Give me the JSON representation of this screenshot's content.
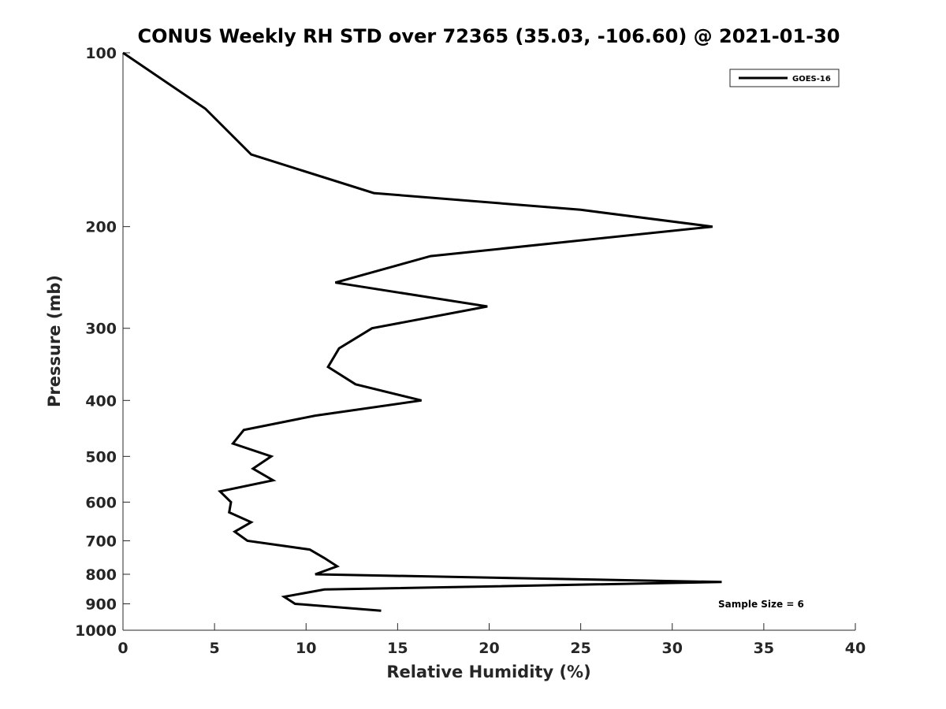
{
  "chart_data": {
    "type": "line",
    "title": "CONUS Weekly RH STD over 72365 (35.03, -106.60) @ 2021-01-30",
    "xlabel": "Relative Humidity (%)",
    "ylabel": "Pressure (mb)",
    "xlim": [
      0,
      40
    ],
    "ylim": [
      100,
      1000
    ],
    "y_scale": "log",
    "y_reversed": true,
    "x_ticks": [
      "0",
      "5",
      "10",
      "15",
      "20",
      "25",
      "30",
      "35",
      "40"
    ],
    "y_ticks": [
      "100",
      "200",
      "300",
      "400",
      "500",
      "600",
      "700",
      "800",
      "900",
      "1000"
    ],
    "grid": false,
    "legend_position": "top-right",
    "annotation": "Sample Size = 6",
    "series": [
      {
        "name": "GOES-16",
        "color": "#000000",
        "points": [
          {
            "x": 0.0,
            "y": 100
          },
          {
            "x": 4.5,
            "y": 125
          },
          {
            "x": 7.0,
            "y": 150
          },
          {
            "x": 13.7,
            "y": 175
          },
          {
            "x": 25.0,
            "y": 187
          },
          {
            "x": 32.2,
            "y": 200
          },
          {
            "x": 16.8,
            "y": 225
          },
          {
            "x": 11.6,
            "y": 250
          },
          {
            "x": 19.9,
            "y": 275
          },
          {
            "x": 13.6,
            "y": 300
          },
          {
            "x": 11.8,
            "y": 325
          },
          {
            "x": 11.2,
            "y": 350
          },
          {
            "x": 12.7,
            "y": 375
          },
          {
            "x": 16.3,
            "y": 400
          },
          {
            "x": 10.5,
            "y": 425
          },
          {
            "x": 6.6,
            "y": 450
          },
          {
            "x": 6.0,
            "y": 475
          },
          {
            "x": 8.1,
            "y": 500
          },
          {
            "x": 7.1,
            "y": 525
          },
          {
            "x": 8.2,
            "y": 550
          },
          {
            "x": 5.3,
            "y": 575
          },
          {
            "x": 5.9,
            "y": 600
          },
          {
            "x": 5.8,
            "y": 625
          },
          {
            "x": 7.0,
            "y": 650
          },
          {
            "x": 6.1,
            "y": 675
          },
          {
            "x": 6.8,
            "y": 700
          },
          {
            "x": 10.2,
            "y": 725
          },
          {
            "x": 11.0,
            "y": 750
          },
          {
            "x": 11.7,
            "y": 775
          },
          {
            "x": 10.5,
            "y": 800
          },
          {
            "x": 32.7,
            "y": 825
          },
          {
            "x": 11.0,
            "y": 850
          },
          {
            "x": 8.8,
            "y": 875
          },
          {
            "x": 9.4,
            "y": 900
          },
          {
            "x": 14.1,
            "y": 925
          }
        ]
      }
    ]
  }
}
